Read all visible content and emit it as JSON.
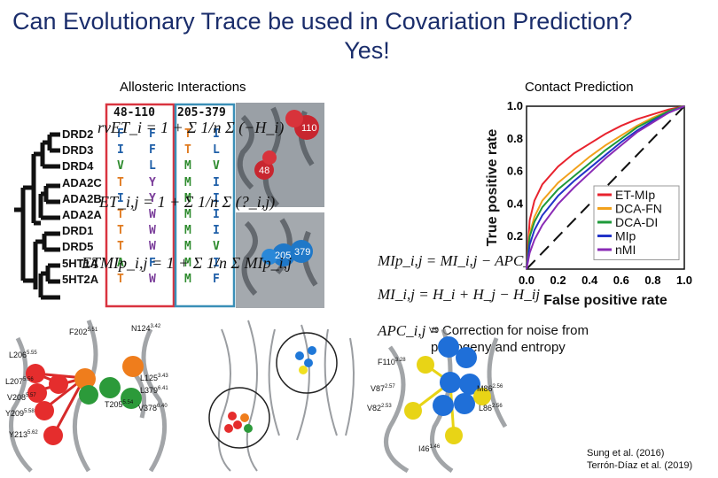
{
  "title": {
    "line1": "Can Evolutionary Trace be used in Covariation Prediction?",
    "line2": "Yes!"
  },
  "allosteric": {
    "label": "Allosteric Interactions",
    "col1_header": "48-110",
    "col2_header": "205-379",
    "species": [
      "DRD2",
      "DRD3",
      "DRD4",
      "ADA2C",
      "ADA2B",
      "ADA2A",
      "DRD1",
      "DRD5",
      "5HT1A",
      "5HT2A"
    ],
    "col1": [
      "F",
      "I",
      "V",
      "T",
      "I",
      "T",
      "T",
      "T",
      "A",
      "T"
    ],
    "col2": [
      "F",
      "F",
      "L",
      "Y",
      "Y",
      "W",
      "W",
      "W",
      "F",
      "W"
    ],
    "col3": [
      "T",
      "T",
      "M",
      "M",
      "M",
      "M",
      "M",
      "M",
      "M",
      "M"
    ],
    "col4": [
      "I",
      "L",
      "V",
      "I",
      "I",
      "I",
      "I",
      "V",
      "I",
      "F"
    ],
    "residue_tags": [
      "110",
      "48",
      "205",
      "379"
    ],
    "colors": {
      "orange": "#e07a1f",
      "blue": "#1f5fa8",
      "green": "#2e8b2e",
      "purple": "#7a3d9a",
      "red_box": "#d9333f",
      "teal_box": "#3a8fb7"
    }
  },
  "equations": {
    "et": "rvET_i = 1 + Σ 1/n Σ (−H_i)",
    "et_pair": "ET_i,j = 1 + Σ 1/n Σ (?_i,j)",
    "etmip": "ETMIp_i,j = 1 + Σ 1/n Σ MIp_i,j",
    "mip": "MIp_i,j = MI_i,j − APC_i,j",
    "mi": "MI_i,j = H_i + H_j − H_ij",
    "apc_symbol": "APC_i,j",
    "apc_desc": "= Correction for noise from phylogeny and entropy"
  },
  "contact": {
    "label": "Contact Prediction"
  },
  "chart_data": {
    "type": "line",
    "title": "",
    "xlabel": "False positive rate",
    "ylabel": "True positive rate",
    "xlim": [
      0.0,
      1.0
    ],
    "ylim": [
      0.0,
      1.0
    ],
    "xticks": [
      "0.0",
      "0.2",
      "0.4",
      "0.6",
      "0.8",
      "1.0"
    ],
    "yticks": [
      "0.2",
      "0.4",
      "0.6",
      "0.8",
      "1.0"
    ],
    "legend_position": "bottom-right",
    "series": [
      {
        "name": "ET-MIp",
        "color": "#e8232e",
        "x": [
          0,
          0.02,
          0.05,
          0.1,
          0.2,
          0.3,
          0.4,
          0.5,
          0.6,
          0.7,
          0.8,
          0.9,
          1.0
        ],
        "y": [
          0,
          0.3,
          0.42,
          0.52,
          0.63,
          0.71,
          0.77,
          0.83,
          0.88,
          0.92,
          0.95,
          0.98,
          1.0
        ]
      },
      {
        "name": "DCA-FN",
        "color": "#f2a11c",
        "x": [
          0,
          0.02,
          0.05,
          0.1,
          0.2,
          0.3,
          0.4,
          0.5,
          0.6,
          0.7,
          0.8,
          0.9,
          1.0
        ],
        "y": [
          0,
          0.22,
          0.32,
          0.42,
          0.53,
          0.61,
          0.69,
          0.76,
          0.82,
          0.88,
          0.93,
          0.97,
          1.0
        ]
      },
      {
        "name": "DCA-DI",
        "color": "#1e9a3a",
        "x": [
          0,
          0.02,
          0.05,
          0.1,
          0.2,
          0.3,
          0.4,
          0.5,
          0.6,
          0.7,
          0.8,
          0.9,
          1.0
        ],
        "y": [
          0,
          0.2,
          0.29,
          0.38,
          0.49,
          0.57,
          0.65,
          0.73,
          0.8,
          0.87,
          0.92,
          0.97,
          1.0
        ]
      },
      {
        "name": "MIp",
        "color": "#2233c8",
        "x": [
          0,
          0.02,
          0.05,
          0.1,
          0.2,
          0.3,
          0.4,
          0.5,
          0.6,
          0.7,
          0.8,
          0.9,
          1.0
        ],
        "y": [
          0,
          0.15,
          0.24,
          0.33,
          0.45,
          0.54,
          0.62,
          0.7,
          0.78,
          0.85,
          0.91,
          0.96,
          1.0
        ]
      },
      {
        "name": "nMI",
        "color": "#8a2bb5",
        "x": [
          0,
          0.02,
          0.05,
          0.1,
          0.2,
          0.3,
          0.4,
          0.5,
          0.6,
          0.7,
          0.8,
          0.9,
          1.0
        ],
        "y": [
          0,
          0.1,
          0.18,
          0.27,
          0.4,
          0.5,
          0.59,
          0.68,
          0.76,
          0.84,
          0.9,
          0.96,
          1.0
        ]
      }
    ],
    "diagonal": {
      "style": "dashed",
      "color": "#111111"
    }
  },
  "structures": {
    "left_labels": [
      "F202",
      "N124",
      "L206",
      "L207",
      "V208",
      "Y209",
      "L125",
      "L379",
      "T205",
      "V378",
      "Y213"
    ],
    "left_superscripts": [
      "5.51",
      "3.42",
      "5.55",
      "5.56",
      "5.57",
      "5.58",
      "3.43",
      "6.41",
      "5.54",
      "6.40",
      "5.62"
    ],
    "right_labels": [
      "V9",
      "F110",
      "V87",
      "M86",
      "V82",
      "L86",
      "I46"
    ],
    "right_superscripts": [
      "",
      "3.28",
      "2.57",
      "2.56",
      "2.53",
      "2.56",
      "1.46"
    ]
  },
  "citations": [
    "Sung et al. (2016)",
    "Terrón-Díaz et al. (2019)"
  ]
}
